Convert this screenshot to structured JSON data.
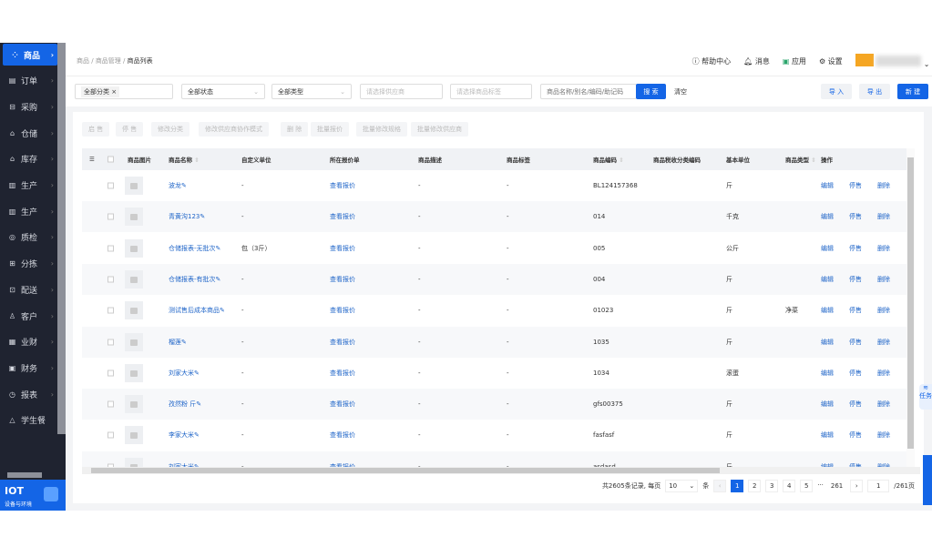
{
  "breadcrumb": [
    "商品",
    "商品管理",
    "商品列表"
  ],
  "header": {
    "help": "帮助中心",
    "messages": "消息",
    "apps": "应用",
    "settings": "设置"
  },
  "sidebar": {
    "items": [
      {
        "label": "商品",
        "icon": "grid-icon",
        "active": true
      },
      {
        "label": "订单",
        "icon": "clipboard-icon"
      },
      {
        "label": "采购",
        "icon": "basket-icon"
      },
      {
        "label": "仓储",
        "icon": "warehouse-icon"
      },
      {
        "label": "库存",
        "icon": "warehouse-icon"
      },
      {
        "label": "生产",
        "icon": "factory-icon"
      },
      {
        "label": "生产",
        "icon": "factory-icon"
      },
      {
        "label": "质检",
        "icon": "shield-icon"
      },
      {
        "label": "分拣",
        "icon": "sort-icon"
      },
      {
        "label": "配送",
        "icon": "truck-icon"
      },
      {
        "label": "客户",
        "icon": "users-icon"
      },
      {
        "label": "业财",
        "icon": "chart-icon"
      },
      {
        "label": "财务",
        "icon": "wallet-icon"
      },
      {
        "label": "报表",
        "icon": "clock-icon"
      },
      {
        "label": "学生餐",
        "icon": "meal-icon"
      }
    ],
    "iot_title": "IOT",
    "iot_sub": "设备与环境"
  },
  "filters": {
    "category_tag": "全部分类",
    "status": "全部状态",
    "type": "全部类型",
    "supplier_placeholder": "请选择供应商",
    "tag_placeholder": "请选择商品标签",
    "search_placeholder": "商品名称/别名/编码/助记码",
    "search": "搜 索",
    "clear": "清空",
    "import": "导 入",
    "export": "导 出",
    "create": "新 建"
  },
  "toolbar": [
    "启 售",
    "停 售",
    "修改分类",
    "修改供应商协作模式",
    "删 除",
    "批量报价",
    "批量修改规格",
    "批量修改供应商"
  ],
  "columns": [
    "商品图片",
    "商品名称",
    "自定义单位",
    "所在报价单",
    "商品描述",
    "商品标签",
    "商品编码",
    "商品税收分类编码",
    "基本单位",
    "商品类型",
    "操作"
  ],
  "rows": [
    {
      "name": "波龙",
      "unit_custom": "-",
      "quote": "查看报价",
      "desc": "-",
      "tag": "-",
      "code": "BL124157368",
      "tax": "",
      "unit": "斤",
      "type": ""
    },
    {
      "name": "青黄沟123",
      "unit_custom": "-",
      "quote": "查看报价",
      "desc": "-",
      "tag": "-",
      "code": "014",
      "tax": "",
      "unit": "千克",
      "type": ""
    },
    {
      "name": "仓储报表-无批次",
      "unit_custom": "包（3斤）",
      "quote": "查看报价",
      "desc": "-",
      "tag": "-",
      "code": "005",
      "tax": "",
      "unit": "公斤",
      "type": ""
    },
    {
      "name": "仓储报表-有批次",
      "unit_custom": "-",
      "quote": "查看报价",
      "desc": "-",
      "tag": "-",
      "code": "004",
      "tax": "",
      "unit": "斤",
      "type": ""
    },
    {
      "name": "测试售后成本商品",
      "unit_custom": "-",
      "quote": "查看报价",
      "desc": "-",
      "tag": "-",
      "code": "01023",
      "tax": "",
      "unit": "斤",
      "type": "净菜"
    },
    {
      "name": "榴莲",
      "unit_custom": "-",
      "quote": "查看报价",
      "desc": "-",
      "tag": "-",
      "code": "1035",
      "tax": "",
      "unit": "斤",
      "type": ""
    },
    {
      "name": "刘家大米",
      "unit_custom": "-",
      "quote": "查看报价",
      "desc": "-",
      "tag": "-",
      "code": "1034",
      "tax": "",
      "unit": "滚蛋",
      "type": ""
    },
    {
      "name": "孜然粉 斤",
      "unit_custom": "-",
      "quote": "查看报价",
      "desc": "-",
      "tag": "-",
      "code": "gfs00375",
      "tax": "",
      "unit": "斤",
      "type": ""
    },
    {
      "name": "李家大米",
      "unit_custom": "-",
      "quote": "查看报价",
      "desc": "-",
      "tag": "-",
      "code": "fasfasf",
      "tax": "",
      "unit": "斤",
      "type": ""
    },
    {
      "name": "刘家大米",
      "unit_custom": "-",
      "quote": "查看报价",
      "desc": "-",
      "tag": "-",
      "code": "asdasd",
      "tax": "",
      "unit": "斤",
      "type": ""
    }
  ],
  "actions": {
    "edit": "编辑",
    "stop": "停售",
    "delete": "删除"
  },
  "pagination": {
    "summary": "共2605条记录, 每页",
    "page_size": "10",
    "unit": "条",
    "pages": [
      "1",
      "2",
      "3",
      "4",
      "5",
      "...",
      "261"
    ],
    "current": "1",
    "jump_value": "1",
    "total_pages": "/261页"
  },
  "floating": {
    "task": "任务"
  },
  "colors": {
    "primary": "#1465e6",
    "sidebar": "#1f2330",
    "link": "#1e64c8"
  }
}
